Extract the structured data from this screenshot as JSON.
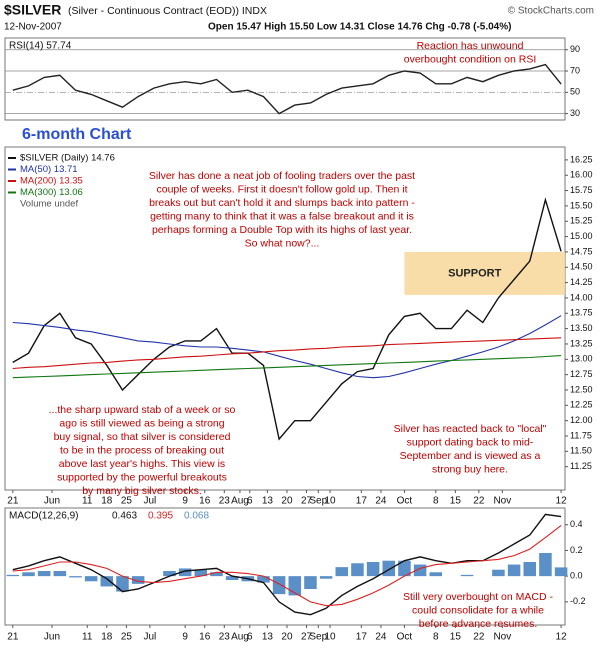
{
  "header": {
    "symbol": "$SILVER",
    "description": "(Silver - Continuous Contract (EOD)) INDX",
    "date": "12-Nov-2007",
    "quote": "Open 15.47  High 15.50  Low 14.31  Close 14.76  Chg -0.78 (-5.04%)",
    "source": "© StockCharts.com",
    "heading": "6-month Chart"
  },
  "chart_data": [
    {
      "type": "line",
      "title": "RSI(14) 57.74",
      "x": [
        0,
        4,
        8,
        12,
        16,
        20,
        24,
        28,
        32,
        36,
        40,
        44,
        48,
        52,
        56,
        60,
        64,
        68,
        72,
        76,
        80,
        84,
        88,
        92,
        96,
        100,
        104,
        108,
        112,
        116,
        120,
        124,
        128,
        132,
        136,
        140
      ],
      "xlim": [
        -2,
        141
      ],
      "ylim": [
        24,
        101
      ],
      "yticks": [
        90,
        70,
        50,
        30
      ],
      "grid": true,
      "series": [
        {
          "name": "RSI(14)",
          "color": "#222222",
          "values": [
            52,
            56,
            64,
            66,
            52,
            48,
            42,
            36,
            46,
            54,
            58,
            60,
            58,
            62,
            50,
            52,
            46,
            30,
            38,
            40,
            48,
            54,
            56,
            58,
            66,
            70,
            68,
            58,
            58,
            64,
            60,
            66,
            70,
            72,
            76,
            57.74
          ]
        }
      ],
      "annotations": [
        {
          "lines": [
            "Reaction has unwound",
            "overbought condition on RSI"
          ]
        }
      ]
    },
    {
      "type": "line",
      "x": [
        0,
        4,
        8,
        12,
        16,
        20,
        24,
        28,
        32,
        36,
        40,
        44,
        48,
        52,
        56,
        60,
        64,
        68,
        72,
        76,
        80,
        84,
        88,
        92,
        96,
        100,
        104,
        108,
        112,
        116,
        120,
        124,
        128,
        132,
        136,
        140
      ],
      "xlim": [
        -2,
        141
      ],
      "ylim": [
        10.87,
        16.46
      ],
      "grid": false,
      "yticks": [
        16.25,
        {
          "value": 16,
          "label": "16.00"
        },
        15.75,
        {
          "value": 15.5,
          "label": "15.50"
        },
        15.25,
        {
          "value": 15,
          "label": "15.00"
        },
        14.75,
        {
          "value": 14.5,
          "label": "14.50"
        },
        14.25,
        {
          "value": 14,
          "label": "14.00"
        },
        13.75,
        {
          "value": 13.5,
          "label": "13.50"
        },
        13.25,
        {
          "value": 13,
          "label": "13.00"
        },
        12.75,
        {
          "value": 12.5,
          "label": "12.50"
        },
        12.25,
        {
          "value": 12,
          "label": "12.00"
        },
        11.75,
        {
          "value": 11.5,
          "label": "11.50"
        },
        11.25
      ],
      "xticks": [
        {
          "value": 0,
          "label": "21"
        },
        {
          "value": 10,
          "label": "Jun"
        },
        {
          "value": 19,
          "label": "11"
        },
        {
          "value": 24,
          "label": "18"
        },
        {
          "value": 29,
          "label": "25"
        },
        {
          "value": 35,
          "label": "Jul"
        },
        {
          "value": 44,
          "label": "9"
        },
        {
          "value": 49,
          "label": "16"
        },
        {
          "value": 54,
          "label": "23"
        },
        {
          "value": 58,
          "label": "Aug"
        },
        {
          "value": 60.5,
          "label": "6"
        },
        {
          "value": 65,
          "label": "13"
        },
        {
          "value": 70,
          "label": "20"
        },
        {
          "value": 75,
          "label": "27"
        },
        {
          "value": 78,
          "label": "Sep"
        },
        {
          "value": 81,
          "label": "10"
        },
        {
          "value": 89,
          "label": "17"
        },
        {
          "value": 94,
          "label": "24"
        },
        {
          "value": 100,
          "label": "Oct"
        },
        {
          "value": 108,
          "label": "8"
        },
        {
          "value": 113,
          "label": "15"
        },
        {
          "value": 119,
          "label": "22"
        },
        {
          "value": 125,
          "label": "Nov"
        },
        {
          "value": 140,
          "label": "12"
        }
      ],
      "series": [
        {
          "name": "$SILVER (Daily) 14.76",
          "color": "#111111",
          "values": [
            12.95,
            13.1,
            13.55,
            13.75,
            13.35,
            13.25,
            12.9,
            12.5,
            12.75,
            13.0,
            13.2,
            13.3,
            13.3,
            13.5,
            13.1,
            13.1,
            12.9,
            11.7,
            12.0,
            12.0,
            12.3,
            12.6,
            12.8,
            12.85,
            13.4,
            13.7,
            13.75,
            13.5,
            13.5,
            13.8,
            13.6,
            14.0,
            14.3,
            14.6,
            15.6,
            14.76
          ]
        },
        {
          "name": "MA(50) 13.71",
          "color": "#2233aa",
          "values": [
            13.6,
            13.58,
            13.55,
            13.52,
            13.48,
            13.45,
            13.4,
            13.35,
            13.3,
            13.28,
            13.25,
            13.22,
            13.2,
            13.2,
            13.18,
            13.15,
            13.12,
            13.05,
            12.98,
            12.92,
            12.85,
            12.78,
            12.72,
            12.7,
            12.72,
            12.78,
            12.85,
            12.92,
            12.98,
            13.05,
            13.12,
            13.2,
            13.3,
            13.42,
            13.56,
            13.71
          ]
        },
        {
          "name": "MA(200) 13.35",
          "color": "#cc1111",
          "values": [
            12.85,
            12.87,
            12.88,
            12.9,
            12.92,
            12.94,
            12.95,
            12.97,
            12.99,
            13.0,
            13.02,
            13.04,
            13.05,
            13.07,
            13.09,
            13.1,
            13.12,
            13.14,
            13.15,
            13.17,
            13.18,
            13.2,
            13.21,
            13.22,
            13.24,
            13.25,
            13.26,
            13.27,
            13.28,
            13.29,
            13.3,
            13.31,
            13.32,
            13.33,
            13.34,
            13.35
          ]
        },
        {
          "name": "MA(300) 13.06",
          "color": "#117711",
          "values": [
            12.7,
            12.71,
            12.72,
            12.73,
            12.74,
            12.75,
            12.76,
            12.77,
            12.78,
            12.79,
            12.8,
            12.81,
            12.82,
            12.83,
            12.84,
            12.85,
            12.86,
            12.87,
            12.88,
            12.89,
            12.9,
            12.91,
            12.92,
            12.93,
            12.94,
            12.95,
            12.96,
            12.97,
            12.98,
            12.99,
            13.0,
            13.01,
            13.02,
            13.03,
            13.045,
            13.06
          ]
        }
      ],
      "legend_note": "Volume undef",
      "support_zone": {
        "label": "SUPPORT",
        "from_x": 100,
        "range": [
          14.05,
          14.75
        ],
        "color": "#f7d79a"
      },
      "annotations": [
        {
          "lines": [
            "Silver has done a neat job of fooling traders over the past",
            "couple of weeks. First it doesn't follow gold up. Then it",
            "breaks out but can't hold it and slumps back into pattern -",
            "getting many to think that it was a false breakout and it is",
            "perhaps forming a Double Top with its highs of last year.",
            "So what now?..."
          ]
        },
        {
          "lines": [
            "...the sharp upward stab of a week or so",
            "ago is still viewed as being a strong",
            "buy signal, so that silver is considered",
            "to be in the process of breaking out",
            "above last year's highs. This view is",
            "supported by the powerful breakouts",
            "by many big silver stocks."
          ]
        },
        {
          "lines": [
            "Silver has reacted back to \"local\"",
            "support dating back to mid-",
            "September and is viewed as a",
            "strong buy here."
          ]
        }
      ]
    },
    {
      "type": "line",
      "title": "MACD(12,26,9)",
      "x": [
        0,
        4,
        8,
        12,
        16,
        20,
        24,
        28,
        32,
        36,
        40,
        44,
        48,
        52,
        56,
        60,
        64,
        68,
        72,
        76,
        80,
        84,
        88,
        92,
        96,
        100,
        104,
        108,
        112,
        116,
        120,
        124,
        128,
        132,
        136,
        140
      ],
      "xlim": [
        -2,
        141
      ],
      "ylim": [
        -0.38,
        0.53
      ],
      "grid": false,
      "yticks": [
        0.4,
        0.2,
        {
          "value": 0,
          "label": "0.0"
        },
        -0.2
      ],
      "xticks": [
        {
          "value": 0,
          "label": "21"
        },
        {
          "value": 10,
          "label": "Jun"
        },
        {
          "value": 19,
          "label": "11"
        },
        {
          "value": 24,
          "label": "18"
        },
        {
          "value": 29,
          "label": "25"
        },
        {
          "value": 35,
          "label": "Jul"
        },
        {
          "value": 44,
          "label": "9"
        },
        {
          "value": 49,
          "label": "16"
        },
        {
          "value": 54,
          "label": "23"
        },
        {
          "value": 58,
          "label": "Aug"
        },
        {
          "value": 60.5,
          "label": "6"
        },
        {
          "value": 65,
          "label": "13"
        },
        {
          "value": 70,
          "label": "20"
        },
        {
          "value": 75,
          "label": "27"
        },
        {
          "value": 78,
          "label": "Sep"
        },
        {
          "value": 81,
          "label": "10"
        },
        {
          "value": 89,
          "label": "17"
        },
        {
          "value": 94,
          "label": "24"
        },
        {
          "value": 100,
          "label": "Oct"
        },
        {
          "value": 108,
          "label": "8"
        },
        {
          "value": 113,
          "label": "15"
        },
        {
          "value": 119,
          "label": "22"
        },
        {
          "value": 125,
          "label": "Nov"
        },
        {
          "value": 140,
          "label": "12"
        }
      ],
      "series": [
        {
          "name": "0.463",
          "color": "#111111",
          "values": [
            0.05,
            0.08,
            0.12,
            0.15,
            0.1,
            0.05,
            -0.02,
            -0.12,
            -0.1,
            -0.05,
            0.0,
            0.04,
            0.05,
            0.06,
            0.0,
            -0.02,
            -0.05,
            -0.2,
            -0.28,
            -0.3,
            -0.25,
            -0.15,
            -0.08,
            -0.02,
            0.05,
            0.12,
            0.15,
            0.12,
            0.1,
            0.12,
            0.12,
            0.18,
            0.25,
            0.32,
            0.48,
            0.463
          ]
        },
        {
          "name": "0.395",
          "color": "#dd2222",
          "values": [
            0.04,
            0.05,
            0.08,
            0.11,
            0.11,
            0.09,
            0.06,
            0.0,
            -0.04,
            -0.05,
            -0.04,
            -0.02,
            0.0,
            0.03,
            0.03,
            0.02,
            0.0,
            -0.06,
            -0.13,
            -0.2,
            -0.23,
            -0.22,
            -0.18,
            -0.13,
            -0.07,
            0.0,
            0.06,
            0.09,
            0.1,
            0.11,
            0.12,
            0.13,
            0.16,
            0.21,
            0.3,
            0.395
          ]
        },
        {
          "name": "0.068",
          "color": "#5b8fc7",
          "kind": "histogram",
          "values": [
            0.01,
            0.03,
            0.04,
            0.04,
            -0.01,
            -0.04,
            -0.08,
            -0.12,
            -0.06,
            0.0,
            0.04,
            0.06,
            0.05,
            0.03,
            -0.03,
            -0.04,
            -0.05,
            -0.14,
            -0.15,
            -0.1,
            -0.02,
            0.07,
            0.1,
            0.11,
            0.12,
            0.12,
            0.09,
            0.03,
            0.0,
            0.01,
            0.0,
            0.05,
            0.09,
            0.11,
            0.18,
            0.068
          ]
        }
      ],
      "annotations": [
        {
          "lines": [
            "Still very overbought on MACD -",
            "could consolidate for a while",
            "before advance resumes."
          ]
        }
      ]
    }
  ]
}
